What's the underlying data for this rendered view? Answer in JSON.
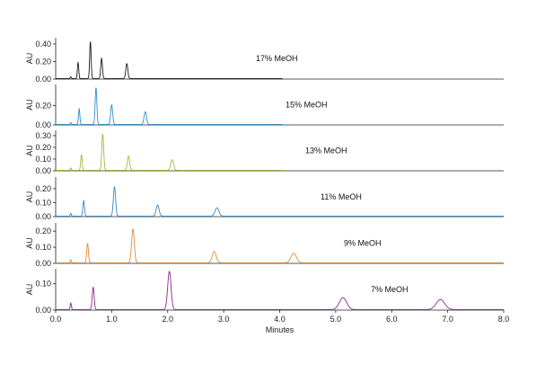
{
  "chart_data": {
    "type": "line",
    "xlabel": "Minutes",
    "ylabel": "AU",
    "xlim": [
      0,
      8.0
    ],
    "x_ticks": [
      "0.0",
      "1.0",
      "2.0",
      "3.0",
      "4.0",
      "5.0",
      "6.0",
      "7.0",
      "8.0"
    ],
    "grid": false,
    "panels": [
      {
        "label": "17% MeOH",
        "color": "#1a1a1a",
        "ylim": [
          0,
          0.45
        ],
        "y_ticks": [
          "0.40",
          "0.20",
          "0.00"
        ],
        "y_tick_values": [
          0.4,
          0.2,
          0.0
        ],
        "x_end": 4.05,
        "peaks": [
          {
            "t": 0.27,
            "h": 0.02,
            "w": 0.01
          },
          {
            "t": 0.4,
            "h": 0.18,
            "w": 0.012
          },
          {
            "t": 0.62,
            "h": 0.42,
            "w": 0.013
          },
          {
            "t": 0.82,
            "h": 0.23,
            "w": 0.015
          },
          {
            "t": 1.27,
            "h": 0.17,
            "w": 0.018
          }
        ]
      },
      {
        "label": "15% MeOH",
        "color": "#2f8fc1",
        "ylim": [
          0,
          0.4
        ],
        "y_ticks": [
          "0.20",
          "0.00"
        ],
        "y_tick_values": [
          0.2,
          0.0
        ],
        "x_end": 4.05,
        "peaks": [
          {
            "t": 0.27,
            "h": 0.02,
            "w": 0.01
          },
          {
            "t": 0.42,
            "h": 0.16,
            "w": 0.012
          },
          {
            "t": 0.72,
            "h": 0.38,
            "w": 0.015
          },
          {
            "t": 1.0,
            "h": 0.2,
            "w": 0.018
          },
          {
            "t": 1.6,
            "h": 0.13,
            "w": 0.022
          }
        ]
      },
      {
        "label": "13% MeOH",
        "color": "#a9b73a",
        "ylim": [
          0,
          0.33
        ],
        "y_ticks": [
          "0.30",
          "0.20",
          "0.10",
          "0.00"
        ],
        "y_tick_values": [
          0.3,
          0.2,
          0.1,
          0.0
        ],
        "x_end": 4.05,
        "peaks": [
          {
            "t": 0.27,
            "h": 0.02,
            "w": 0.01
          },
          {
            "t": 0.46,
            "h": 0.13,
            "w": 0.013
          },
          {
            "t": 0.84,
            "h": 0.31,
            "w": 0.017
          },
          {
            "t": 1.3,
            "h": 0.12,
            "w": 0.02
          },
          {
            "t": 2.08,
            "h": 0.09,
            "w": 0.026
          }
        ]
      },
      {
        "label": "11% MeOH",
        "color": "#3a87c0",
        "ylim": [
          0,
          0.27
        ],
        "y_ticks": [
          "0.20",
          "0.10",
          "0.00"
        ],
        "y_tick_values": [
          0.2,
          0.1,
          0.0
        ],
        "x_end": 8.0,
        "peaks": [
          {
            "t": 0.27,
            "h": 0.02,
            "w": 0.01
          },
          {
            "t": 0.5,
            "h": 0.11,
            "w": 0.014
          },
          {
            "t": 1.05,
            "h": 0.21,
            "w": 0.02
          },
          {
            "t": 1.82,
            "h": 0.08,
            "w": 0.026
          },
          {
            "t": 2.88,
            "h": 0.06,
            "w": 0.034
          }
        ]
      },
      {
        "label": "9% MeOH",
        "color": "#e08a3c",
        "ylim": [
          0,
          0.24
        ],
        "y_ticks": [
          "0.20",
          "0.10",
          "0.00"
        ],
        "y_tick_values": [
          0.2,
          0.1,
          0.0
        ],
        "x_end": 8.0,
        "peaks": [
          {
            "t": 0.27,
            "h": 0.02,
            "w": 0.01
          },
          {
            "t": 0.57,
            "h": 0.12,
            "w": 0.015
          },
          {
            "t": 1.38,
            "h": 0.21,
            "w": 0.024
          },
          {
            "t": 2.83,
            "h": 0.07,
            "w": 0.036
          },
          {
            "t": 4.25,
            "h": 0.06,
            "w": 0.048
          }
        ]
      },
      {
        "label": "7% MeOH",
        "color": "#8b2a86",
        "ylim": [
          0,
          0.15
        ],
        "y_ticks": [
          "0.10",
          "0.00"
        ],
        "y_tick_values": [
          0.1,
          0.0
        ],
        "x_end": 8.0,
        "peaks": [
          {
            "t": 0.27,
            "h": 0.025,
            "w": 0.011
          },
          {
            "t": 0.67,
            "h": 0.085,
            "w": 0.017
          },
          {
            "t": 2.03,
            "h": 0.145,
            "w": 0.03
          },
          {
            "t": 5.13,
            "h": 0.045,
            "w": 0.065
          },
          {
            "t": 6.87,
            "h": 0.038,
            "w": 0.075
          }
        ]
      }
    ]
  }
}
